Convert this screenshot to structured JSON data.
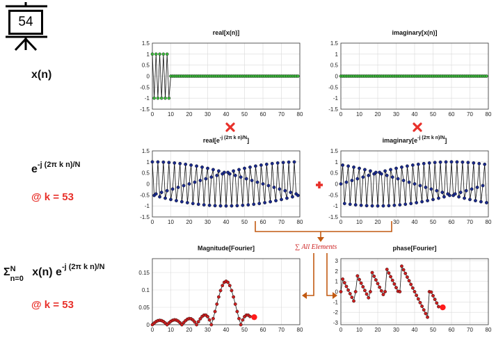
{
  "slide_number": "54",
  "labels": {
    "xn": "x(n)",
    "kernel_base": "e",
    "kernel_exp": "-j (2π k n)/N",
    "k_value": "@ k = 53",
    "sum_sigma": "Σ",
    "sum_upper": "N",
    "sum_lower": "n=0",
    "sum_body": " x(n) e",
    "sum_exp": "-j (2π k n)/N",
    "k_value2": "@ k = 53",
    "all_elements": "∑ All Elements"
  },
  "colors": {
    "green_markers": "#3cb83c",
    "blue_markers": "#1a2a8c",
    "red_markers": "#cc1f1f",
    "accent_red": "#e8302a",
    "arrow_orange": "#c25a12"
  },
  "chart_data": [
    {
      "type": "line",
      "name": "real-x",
      "title": "real[x(n)]",
      "xlim": [
        0,
        80
      ],
      "ylim": [
        -1.5,
        1.5
      ],
      "xticks": [
        "0",
        "10",
        "20",
        "30",
        "40",
        "50",
        "60",
        "70",
        "80"
      ],
      "yticks": [
        "1.5",
        "1",
        "0.5",
        "0",
        "-0.5",
        "-1",
        "-1.5"
      ],
      "marker_color": "green",
      "series_rule": "n = 0..79; for n <= 9 value = +1 (even n) / -1 (odd n); for n >= 10 value = 0"
    },
    {
      "type": "line",
      "name": "imag-x",
      "title": "imaginary[x(n)]",
      "xlim": [
        0,
        80
      ],
      "ylim": [
        -1.5,
        1.5
      ],
      "xticks": [
        "0",
        "10",
        "20",
        "30",
        "40",
        "50",
        "60",
        "70",
        "80"
      ],
      "yticks": [
        "1.5",
        "1",
        "0.5",
        "0",
        "-0.5",
        "-1",
        "-1.5"
      ],
      "marker_color": "green",
      "series_rule": "n = 0..79; value = 0"
    },
    {
      "type": "line",
      "name": "real-kernel",
      "title_main": "real[e",
      "title_sup": "-j (2π k n)/N",
      "title_end": "]",
      "xlim": [
        0,
        80
      ],
      "ylim": [
        -1.5,
        1.5
      ],
      "xticks": [
        "0",
        "10",
        "20",
        "30",
        "40",
        "50",
        "60",
        "70",
        "80"
      ],
      "yticks": [
        "1.5",
        "1",
        "0.5",
        "0",
        "-0.5",
        "-1",
        "-1.5"
      ],
      "marker_color": "blue",
      "k": 53,
      "N": 80,
      "series_rule": "n = 0..79; value = cos(-2π k n / N)"
    },
    {
      "type": "line",
      "name": "imag-kernel",
      "title_main": "imaginary[e",
      "title_sup": "-j (2π k n)/N",
      "title_end": "]",
      "xlim": [
        0,
        80
      ],
      "ylim": [
        -1.5,
        1.5
      ],
      "xticks": [
        "0",
        "10",
        "20",
        "30",
        "40",
        "50",
        "60",
        "70",
        "80"
      ],
      "yticks": [
        "1.5",
        "1",
        "0.5",
        "0",
        "-0.5",
        "-1",
        "-1.5"
      ],
      "marker_color": "blue",
      "k": 53,
      "N": 80,
      "series_rule": "n = 0..79; value = sin(-2π k n / N)"
    },
    {
      "type": "line",
      "name": "magnitude",
      "title": "Magnitude[Fourier]",
      "xlim": [
        0,
        80
      ],
      "ylim": [
        0,
        0.19
      ],
      "xticks": [
        "0",
        "10",
        "20",
        "30",
        "40",
        "50",
        "60",
        "70",
        "80"
      ],
      "yticks": [
        "0.15",
        "0.1",
        "0.05",
        "0"
      ],
      "ytick_values": [
        0.15,
        0.1,
        0.05,
        0
      ],
      "marker_color": "red",
      "current_k": 53,
      "series_rule": "k = 0..53; value = |X(k)| / N with X = DFT of x(n), N = 80"
    },
    {
      "type": "line",
      "name": "phase",
      "title": "phase[Fourier]",
      "xlim": [
        0,
        80
      ],
      "ylim": [
        -3.2,
        3.2
      ],
      "xticks": [
        "0",
        "10",
        "20",
        "30",
        "40",
        "50",
        "60",
        "70",
        "80"
      ],
      "yticks": [
        "3",
        "2",
        "1",
        "0",
        "-1",
        "-2",
        "-3"
      ],
      "ytick_values": [
        3,
        2,
        1,
        0,
        -1,
        -2,
        -3
      ],
      "marker_color": "red",
      "current_k": 53,
      "series_rule": "k = 0..53; value = arg(X(k)) with X = DFT of x(n), N = 80"
    }
  ]
}
